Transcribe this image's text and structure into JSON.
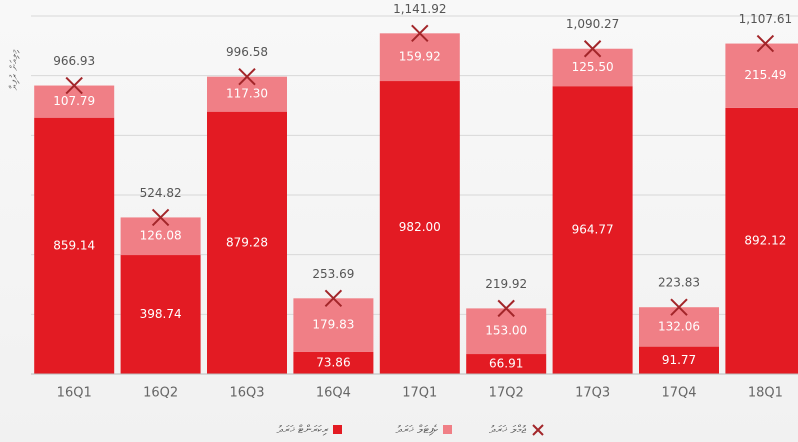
{
  "chart_data": {
    "type": "stacked_bar",
    "y_label": "މިލިއަން ރުފިޔާ",
    "categories": [
      "16Q1",
      "16Q2",
      "16Q3",
      "16Q4",
      "17Q1",
      "17Q2",
      "17Q3",
      "17Q4",
      "18Q1"
    ],
    "series": [
      {
        "name": "ރިކަރަންޓް ޚަރަދު",
        "color": "#e31b23",
        "values": [
          859.14,
          398.74,
          879.28,
          73.86,
          982.0,
          66.91,
          964.77,
          91.77,
          892.12
        ],
        "value_labels": [
          "859.14",
          "398.74",
          "879.28",
          "73.86",
          "982.00",
          "66.91",
          "964.77",
          "91.77",
          "892.12"
        ]
      },
      {
        "name": "ކެޕިޓަލް ޚަރަދު",
        "color": "#f07f86",
        "values": [
          107.79,
          126.08,
          117.3,
          179.83,
          159.92,
          153.0,
          125.5,
          132.06,
          215.49
        ],
        "value_labels": [
          "107.79",
          "126.08",
          "117.30",
          "179.83",
          "159.92",
          "153.00",
          "125.50",
          "132.06",
          "215.49"
        ]
      }
    ],
    "totals": {
      "name": "ޖުމްލަ ޚަރަދު",
      "color": "#a3262a",
      "values": [
        966.93,
        524.82,
        996.58,
        253.69,
        1141.92,
        219.92,
        1090.27,
        223.83,
        1107.61
      ],
      "value_labels": [
        "966.93",
        "524.82",
        "996.58",
        "253.69",
        "1,141.92",
        "219.92",
        "1,090.27",
        "223.83",
        "1,107.61"
      ]
    },
    "ylim": [
      0,
      1200
    ],
    "yticks": [
      0,
      200,
      400,
      600,
      800,
      1000,
      1200
    ],
    "grid": true
  }
}
